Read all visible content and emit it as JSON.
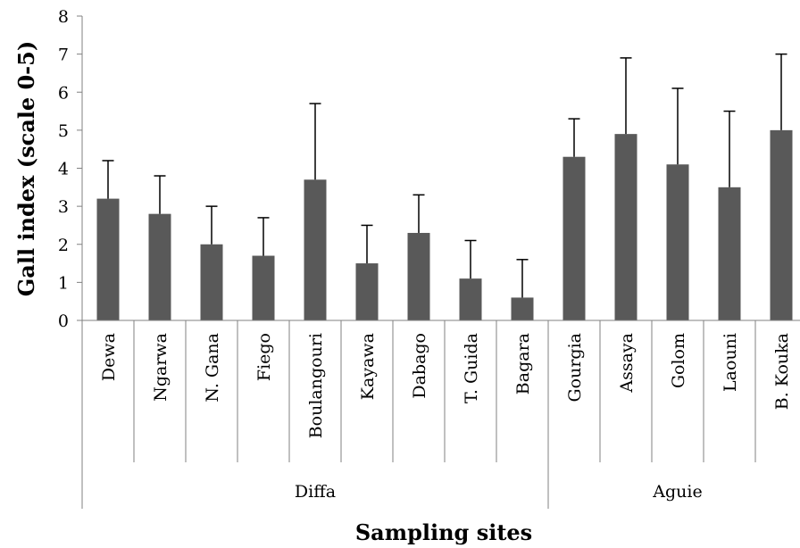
{
  "chart_data": {
    "type": "bar",
    "title": "",
    "xlabel": "Sampling sites",
    "ylabel": "Gall index (scale 0-5)",
    "ylim": [
      0,
      8
    ],
    "yticks": [
      0,
      1,
      2,
      3,
      4,
      5,
      6,
      7,
      8
    ],
    "grid": false,
    "bar_color": "#595959",
    "categories": [
      "Dewa",
      "Ngarwa",
      "N. Gana",
      "Fiego",
      "Boulangouri",
      "Kayawa",
      "Dabago",
      "T. Guida",
      "Bagara",
      "Gourgia",
      "Assaya",
      "Golom",
      "Laouni",
      "B. Kouka"
    ],
    "values": [
      3.2,
      2.8,
      2.0,
      1.7,
      3.7,
      1.5,
      2.3,
      1.1,
      0.6,
      4.3,
      4.9,
      4.1,
      3.5,
      5.0
    ],
    "error_plus": [
      1.0,
      1.0,
      1.0,
      1.0,
      2.0,
      1.0,
      1.0,
      1.0,
      1.0,
      1.0,
      2.0,
      2.0,
      2.0,
      2.0
    ],
    "groups": [
      {
        "label": "Diffa",
        "count": 9
      },
      {
        "label": "Aguie",
        "count": 5
      }
    ]
  }
}
